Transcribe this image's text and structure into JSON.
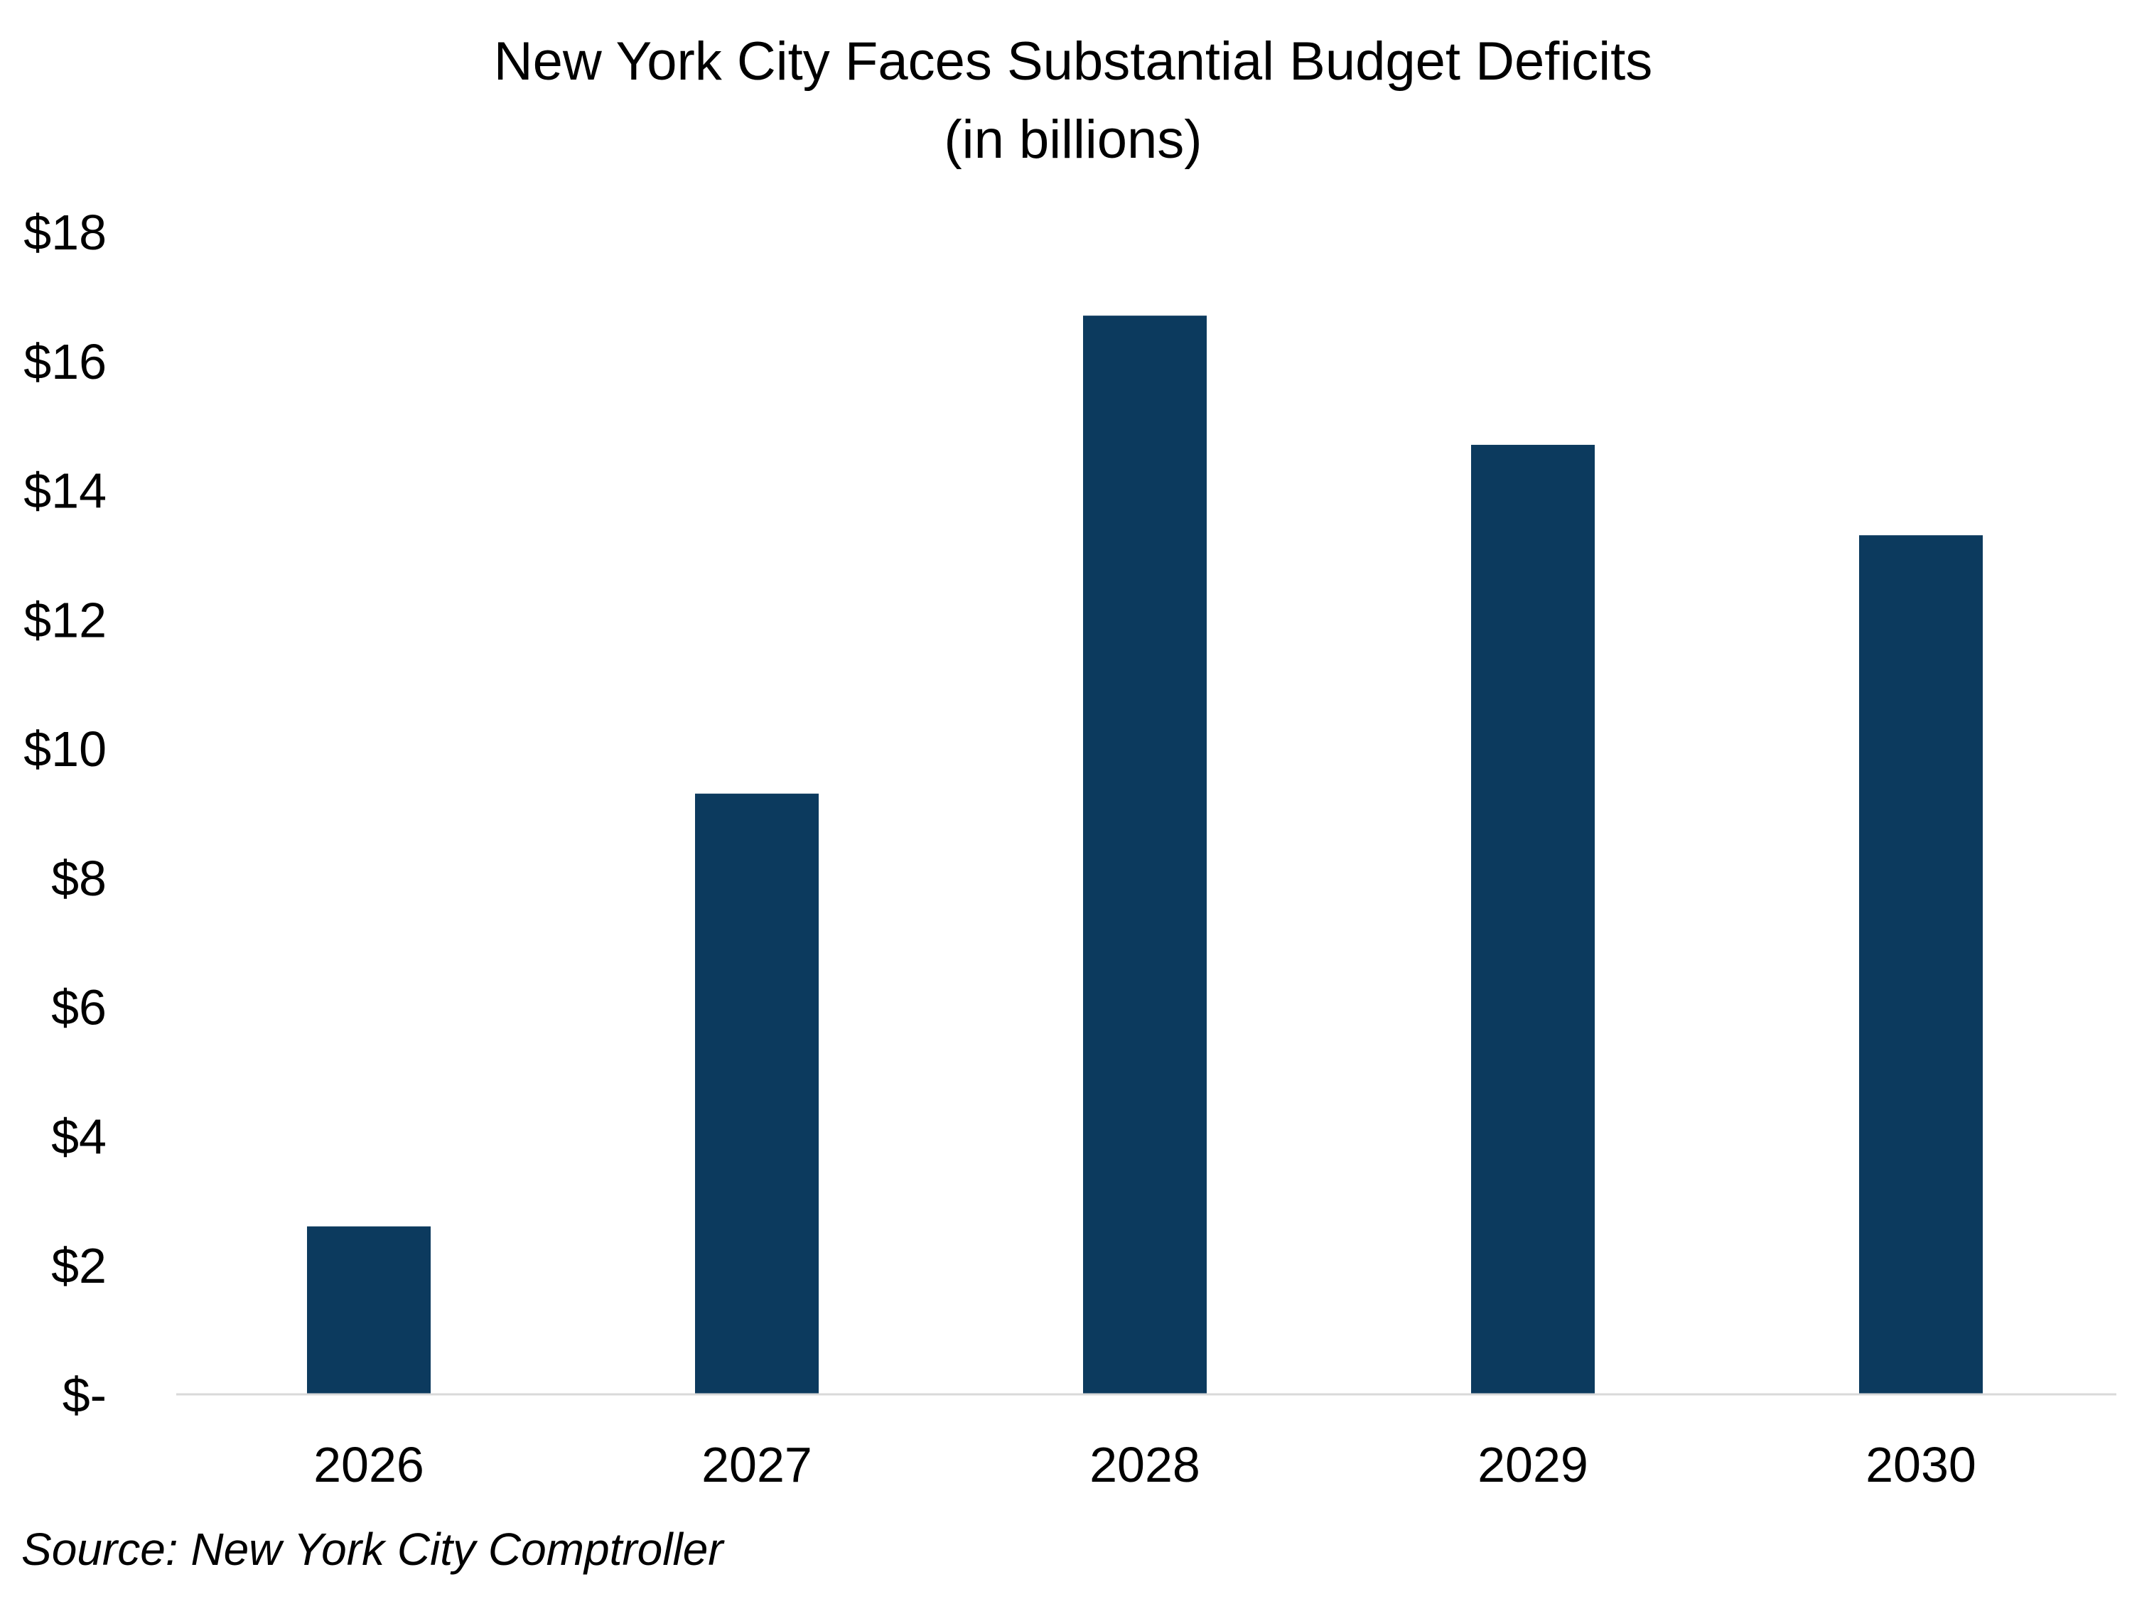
{
  "chart_data": {
    "type": "bar",
    "title": "New York City Faces Substantial Budget Deficits",
    "subtitle": "(in billions)",
    "categories": [
      "2026",
      "2027",
      "2028",
      "2029",
      "2030"
    ],
    "values": [
      2.6,
      9.3,
      16.7,
      14.7,
      13.3
    ],
    "ylim": [
      0,
      18
    ],
    "yticks": [
      0,
      2,
      4,
      6,
      8,
      10,
      12,
      14,
      16,
      18
    ],
    "ytick_labels": [
      "$-",
      "$2",
      "$4",
      "$6",
      "$8",
      "$10",
      "$12",
      "$14",
      "$16",
      "$18"
    ],
    "xlabel": "",
    "ylabel": "",
    "grid": false,
    "legend": "none",
    "bar_color": "#0c3a5e",
    "axis_color": "#d9d9d9"
  },
  "source": "Source: New York City Comptroller"
}
